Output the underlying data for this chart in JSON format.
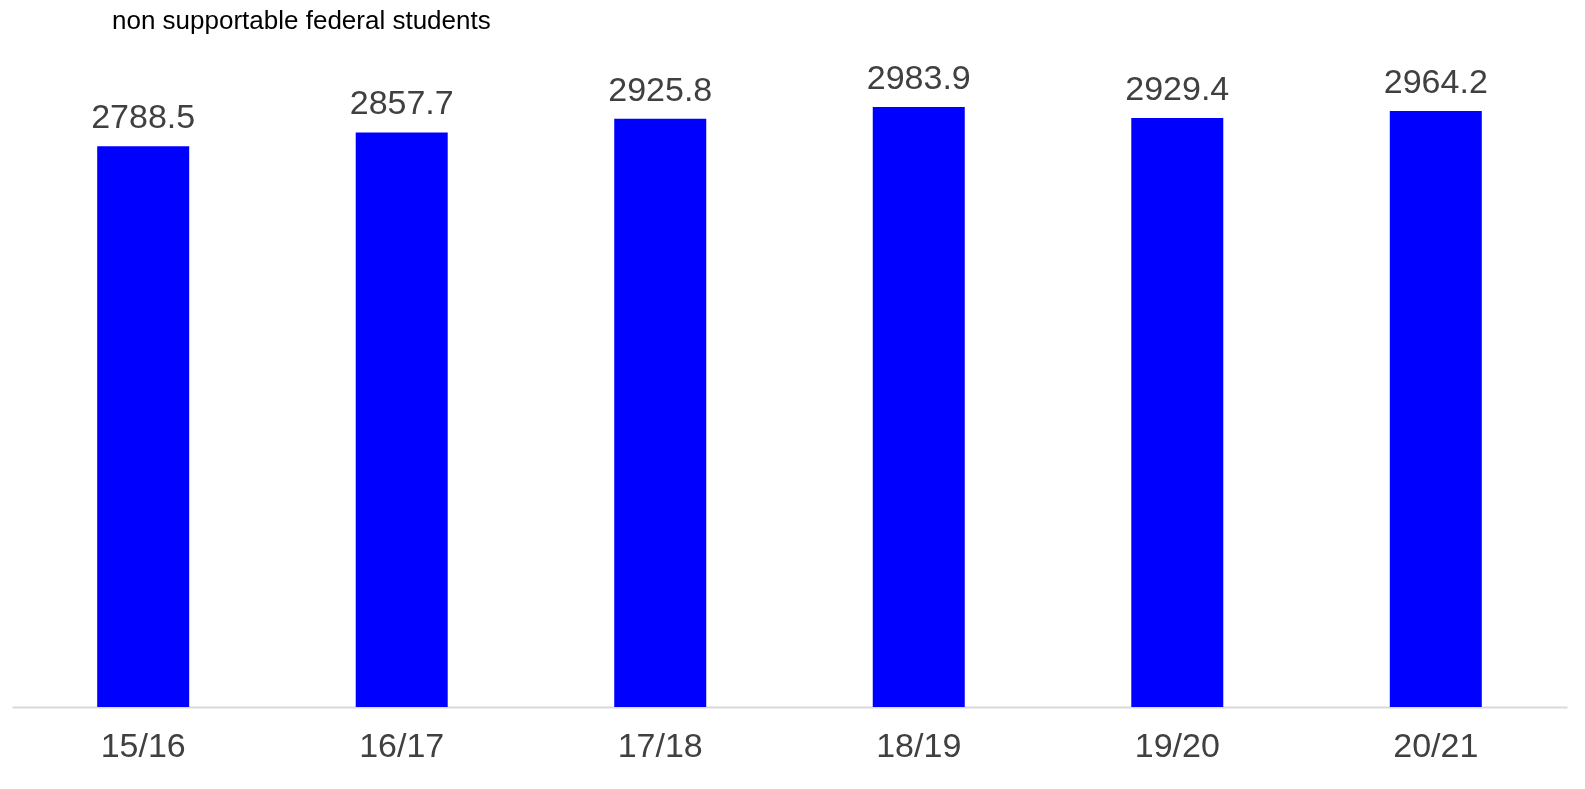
{
  "chart_data": {
    "type": "bar",
    "title": "non supportable federal students",
    "categories": [
      "15/16",
      "16/17",
      "17/18",
      "18/19",
      "19/20",
      "20/21"
    ],
    "values": [
      2788.5,
      2857.7,
      2925.8,
      2983.9,
      2929.4,
      2964.2
    ],
    "color": "#0000ff",
    "data_labels": true
  }
}
